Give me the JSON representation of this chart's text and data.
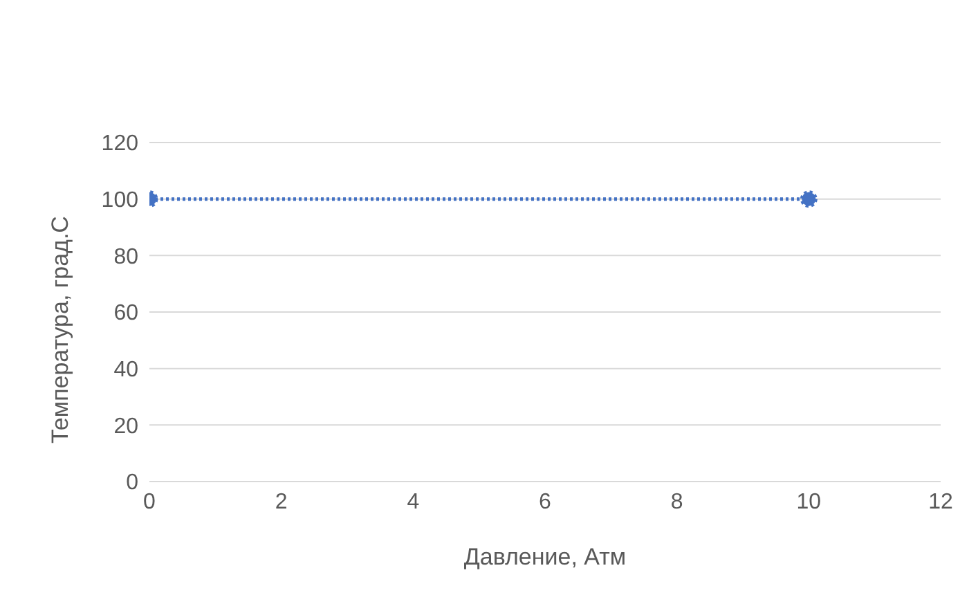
{
  "chart_data": {
    "type": "line",
    "xlabel": "Давление, Атм",
    "ylabel": "Температура, град.С",
    "x": [
      0,
      10
    ],
    "series": [
      {
        "color": "#4472c4",
        "values": [
          100,
          100
        ]
      }
    ],
    "xlim": [
      0,
      12
    ],
    "xticks": [
      0,
      2,
      4,
      6,
      8,
      10,
      12
    ],
    "ylim": [
      0,
      120
    ],
    "yticks": [
      0,
      20,
      40,
      60,
      80,
      100,
      120
    ],
    "grid": "y",
    "legend": false,
    "marker": "circle",
    "line_style": "dotted"
  }
}
